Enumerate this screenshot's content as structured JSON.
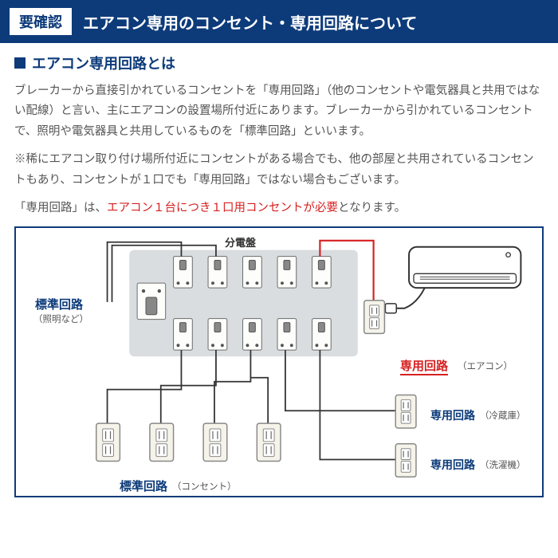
{
  "header": {
    "badge": "要確認",
    "title": "エアコン専用のコンセント・専用回路について"
  },
  "section_title": "エアコン専用回路とは",
  "paragraphs": {
    "p1": "ブレーカーから直接引かれているコンセントを「専用回路」（他のコンセントや電気器具と共用ではない配線）と言い、主にエアコンの設置場所付近にあります。ブレーカーから引かれているコンセントで、照明や電気器具と共用しているものを「標準回路」といいます。",
    "p2": "※稀にエアコン取り付け場所付近にコンセントがある場合でも、他の部屋と共用されているコンセントもあり、コンセントが１口でも「専用回路」ではない場合もございます。",
    "p3_a": "「専用回路」は、",
    "p3_b": "エアコン１台につき１口用コンセントが必要",
    "p3_c": "となります。"
  },
  "diagram": {
    "panel_label": "分電盤",
    "std_circuit_label": "標準回路",
    "std_circuit_sub": "（照明など）",
    "std_circuit2_label": "標準回路",
    "std_circuit2_sub": "（コンセント）",
    "dedicated_label": "専用回路",
    "dedicated_sub_ac": "（エアコン）",
    "dedicated_sub_fridge": "（冷蔵庫）",
    "dedicated_sub_wash": "（洗濯機）",
    "colors": {
      "panel_fill": "#d9dde0",
      "breaker_fill": "#fdfdfb",
      "breaker_stroke": "#6b6b6b",
      "wire": "#333333",
      "wire_red": "#d62020",
      "outlet_fill": "#f6f4ea",
      "outlet_stroke": "#888888",
      "ac_fill": "#ffffff",
      "ac_stroke": "#333333"
    },
    "breaker_top_count": 5,
    "breaker_bot_count": 5,
    "outlets_bottom_count": 4
  }
}
